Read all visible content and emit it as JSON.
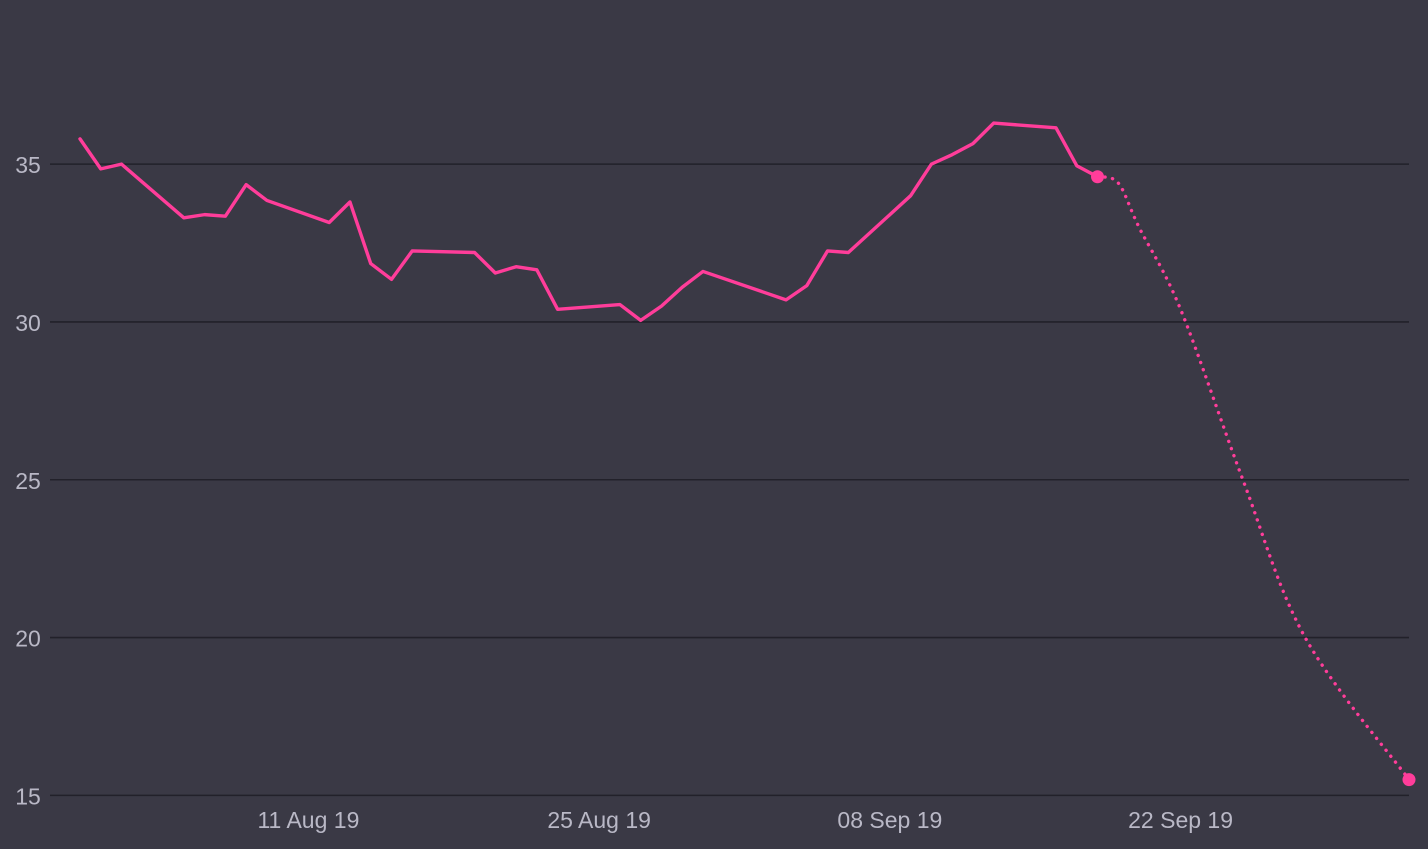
{
  "chart_data": {
    "type": "line",
    "title": "",
    "xlabel": "",
    "ylabel": "",
    "x_ticks": [
      "2019-08-11",
      "2019-08-25",
      "2019-09-08",
      "2019-09-22"
    ],
    "x_tick_labels": [
      "11 Aug 19",
      "25 Aug 19",
      "08 Sep 19",
      "22 Sep 19"
    ],
    "y_ticks": [
      15,
      20,
      25,
      30,
      35
    ],
    "xlim": [
      "2019-07-31",
      "2019-10-03"
    ],
    "ylim": [
      14.6,
      40.2
    ],
    "grid": true,
    "colors": {
      "background": "#3a3945",
      "series": "#ff3d9a",
      "grid": "#22212a",
      "tick_label": "#b9b8c6"
    },
    "series": [
      {
        "style": "solid",
        "points": [
          [
            "2019-07-31",
            35.8
          ],
          [
            "2019-08-01",
            34.85
          ],
          [
            "2019-08-02",
            35.0
          ],
          [
            "2019-08-05",
            33.3
          ],
          [
            "2019-08-06",
            33.4
          ],
          [
            "2019-08-07",
            33.35
          ],
          [
            "2019-08-08",
            34.35
          ],
          [
            "2019-08-09",
            33.85
          ],
          [
            "2019-08-12",
            33.15
          ],
          [
            "2019-08-13",
            33.8
          ],
          [
            "2019-08-14",
            31.85
          ],
          [
            "2019-08-15",
            31.35
          ],
          [
            "2019-08-16",
            32.25
          ],
          [
            "2019-08-19",
            32.2
          ],
          [
            "2019-08-20",
            31.55
          ],
          [
            "2019-08-21",
            31.75
          ],
          [
            "2019-08-22",
            31.65
          ],
          [
            "2019-08-23",
            30.4
          ],
          [
            "2019-08-26",
            30.55
          ],
          [
            "2019-08-27",
            30.05
          ],
          [
            "2019-08-28",
            30.5
          ],
          [
            "2019-08-29",
            31.1
          ],
          [
            "2019-08-30",
            31.6
          ],
          [
            "2019-09-03",
            30.7
          ],
          [
            "2019-09-04",
            31.15
          ],
          [
            "2019-09-05",
            32.25
          ],
          [
            "2019-09-06",
            32.2
          ],
          [
            "2019-09-09",
            34.0
          ],
          [
            "2019-09-10",
            35.0
          ],
          [
            "2019-09-11",
            35.3
          ],
          [
            "2019-09-12",
            35.65
          ],
          [
            "2019-09-13",
            36.3
          ],
          [
            "2019-09-16",
            36.15
          ],
          [
            "2019-09-17",
            34.95
          ],
          [
            "2019-09-18",
            34.6
          ]
        ]
      },
      {
        "style": "dotted",
        "points": [
          [
            "2019-09-18",
            34.6
          ],
          [
            "2019-09-19",
            34.4
          ],
          [
            "2019-09-20",
            33.0
          ],
          [
            "2019-09-22",
            30.4
          ],
          [
            "2019-09-25",
            25.0
          ],
          [
            "2019-09-28",
            20.0
          ],
          [
            "2019-10-03",
            15.5
          ]
        ]
      }
    ],
    "markers": [
      [
        "2019-09-18",
        34.6
      ],
      [
        "2019-10-03",
        15.5
      ]
    ]
  }
}
